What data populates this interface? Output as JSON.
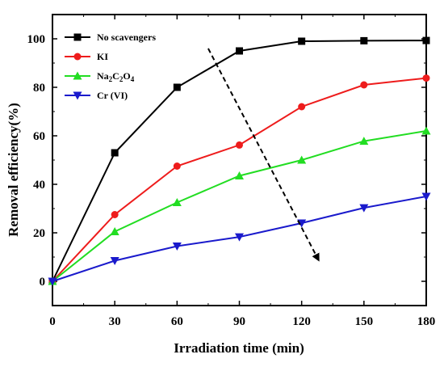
{
  "chart_data": {
    "type": "line",
    "title": "",
    "xlabel": "Irradiation time (min)",
    "ylabel": "Removal efficiency(%)",
    "xlim": [
      0,
      180
    ],
    "ylim": [
      -10,
      110
    ],
    "xticks": [
      0,
      30,
      60,
      90,
      120,
      150,
      180
    ],
    "yticks": [
      0,
      20,
      40,
      60,
      80,
      100
    ],
    "grid": false,
    "legend_position": "top-left",
    "x": [
      0,
      30,
      60,
      90,
      120,
      150,
      180
    ],
    "series": [
      {
        "name": "No scavengers",
        "values": [
          0,
          53,
          80,
          95,
          99,
          99.2,
          99.3
        ],
        "color": "#000000",
        "marker": "square"
      },
      {
        "name": "KI",
        "values": [
          0,
          27.5,
          47.5,
          56.2,
          72,
          81,
          83.8
        ],
        "color": "#ee1c1c",
        "marker": "circle"
      },
      {
        "name": "Na2C2O4",
        "values": [
          0,
          20.5,
          32.5,
          43.5,
          50,
          57.8,
          62
        ],
        "color": "#22dd22",
        "marker": "triangle-up"
      },
      {
        "name": "Cr (VI)",
        "values": [
          0,
          8.5,
          14.5,
          18.3,
          24,
          30.3,
          35
        ],
        "color": "#1a1acc",
        "marker": "triangle-down"
      }
    ],
    "annotation": {
      "type": "dashed-arrow",
      "from": [
        75,
        96
      ],
      "to": [
        128,
        9
      ]
    }
  }
}
